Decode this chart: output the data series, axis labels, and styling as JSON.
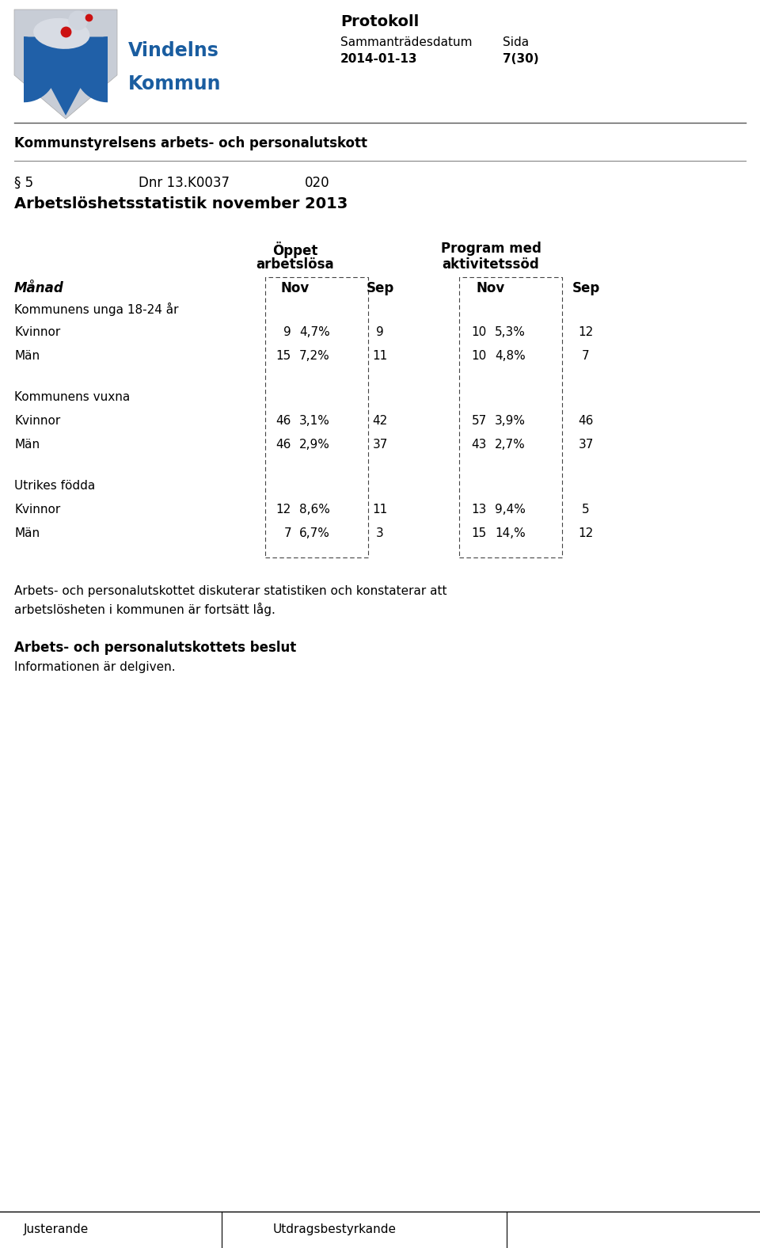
{
  "header_protokoll": "Protokoll",
  "header_datum_label": "Sammanträdesdatum",
  "header_sida_label": "Sida",
  "header_datum_value": "2014-01-13",
  "header_sida_value": "7(30)",
  "org_name_line1": "Vindelns",
  "org_name_line2": "Kommun",
  "section_header": "Kommunstyrelsens arbets- och personalutskott",
  "paragraph": "§ 5",
  "dnr": "Dnr 13.K0037",
  "ref": "020",
  "title": "Arbetslöshetsstatistik november 2013",
  "col_header1_line1": "Öppet",
  "col_header1_line2": "arbetslösa",
  "col_header2_line1": "Program med",
  "col_header2_line2": "aktivitetssöd",
  "sub_col_nov": "Nov",
  "sub_col_sep": "Sep",
  "manad_label": "Månad",
  "groups": [
    {
      "group_label": "Kommunens unga 18-24 år",
      "rows": [
        {
          "label": "Kvinnor",
          "nov1": "9",
          "pct1": "4,7%",
          "sep1": "9",
          "nov2": "10",
          "pct2": "5,3%",
          "sep2": "12"
        },
        {
          "label": "Män",
          "nov1": "15",
          "pct1": "7,2%",
          "sep1": "11",
          "nov2": "10",
          "pct2": "4,8%",
          "sep2": "7"
        }
      ]
    },
    {
      "group_label": "Kommunens vuxna",
      "rows": [
        {
          "label": "Kvinnor",
          "nov1": "46",
          "pct1": "3,1%",
          "sep1": "42",
          "nov2": "57",
          "pct2": "3,9%",
          "sep2": "46"
        },
        {
          "label": "Män",
          "nov1": "46",
          "pct1": "2,9%",
          "sep1": "37",
          "nov2": "43",
          "pct2": "2,7%",
          "sep2": "37"
        }
      ]
    },
    {
      "group_label": "Utrikes födda",
      "rows": [
        {
          "label": "Kvinnor",
          "nov1": "12",
          "pct1": "8,6%",
          "sep1": "11",
          "nov2": "13",
          "pct2": "9,4%",
          "sep2": "5"
        },
        {
          "label": "Män",
          "nov1": "7",
          "pct1": "6,7%",
          "sep1": "3",
          "nov2": "15",
          "pct2": "14,%",
          "sep2": "12"
        }
      ]
    }
  ],
  "footer_text1": "Arbets- och personalutskottet diskuterar statistiken och konstaterar att",
  "footer_text2": "arbetslösheten i kommunen är fortsätt låg.",
  "decision_header": "Arbets- och personalutskottets beslut",
  "decision_text": "Informationen är delgiven.",
  "justerande": "Justerande",
  "utdragsbestyrkande": "Utdragsbestyrkande",
  "bg_color": "#ffffff",
  "text_color": "#000000",
  "logo_blue": "#2060a8",
  "logo_grey": "#c8cdd6",
  "logo_red": "#cc1111",
  "logo_text_color": "#1a5da0"
}
